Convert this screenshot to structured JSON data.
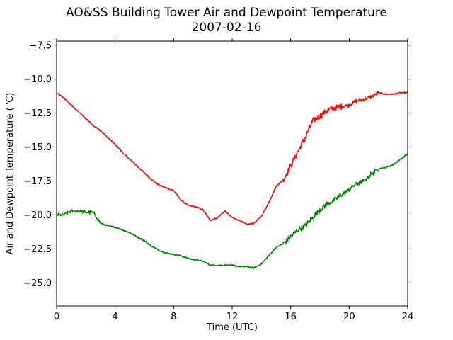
{
  "chart_data": {
    "type": "line",
    "title": "AO&SS Building Tower Air and Dewpoint Temperature",
    "subtitle": "2007-02-16",
    "xlabel": "Time (UTC)",
    "ylabel": "Air and Dewpoint Temperature (°C)",
    "xlim": [
      0,
      24
    ],
    "ylim": [
      -26.7,
      -7.2
    ],
    "xticks": [
      0,
      4,
      8,
      12,
      16,
      20,
      24
    ],
    "xtick_labels": [
      "0",
      "4",
      "8",
      "12",
      "16",
      "20",
      "24"
    ],
    "yticks": [
      -25.0,
      -22.5,
      -20.0,
      -17.5,
      -15.0,
      -12.5,
      -10.0,
      -7.5
    ],
    "ytick_labels": [
      "−25.0",
      "−22.5",
      "−20.0",
      "−17.5",
      "−15.0",
      "−12.5",
      "−10.0",
      "−7.5"
    ],
    "grid": false,
    "series": [
      {
        "color": "#ff0000",
        "x": [
          0,
          0.5,
          1,
          1.5,
          2,
          2.5,
          3,
          3.5,
          4,
          4.5,
          5,
          5.5,
          6,
          6.5,
          7,
          7.5,
          8,
          8.5,
          9,
          9.5,
          10,
          10.5,
          11,
          11.5,
          12,
          12.5,
          13,
          13.5,
          14,
          14.5,
          15,
          15.5,
          16,
          16.5,
          17,
          17.5,
          18,
          18.5,
          19,
          19.5,
          20,
          20.5,
          21,
          21.5,
          22,
          22.5,
          23,
          23.5,
          24
        ],
        "y": [
          -11.0,
          -11.4,
          -11.9,
          -12.4,
          -12.9,
          -13.4,
          -13.8,
          -14.3,
          -14.8,
          -15.4,
          -15.9,
          -16.4,
          -16.9,
          -17.4,
          -17.8,
          -18.0,
          -18.2,
          -18.9,
          -19.3,
          -19.4,
          -19.6,
          -20.4,
          -20.2,
          -19.7,
          -20.2,
          -20.4,
          -20.7,
          -20.6,
          -20.1,
          -19.1,
          -17.9,
          -17.4,
          -16.4,
          -15.3,
          -14.3,
          -13.1,
          -12.7,
          -12.3,
          -12.1,
          -12.0,
          -11.9,
          -11.6,
          -11.5,
          -11.3,
          -11.0,
          -11.1,
          -11.1,
          -11.0,
          -11.0
        ]
      },
      {
        "color": "#008000",
        "x": [
          0,
          0.5,
          1,
          1.5,
          2,
          2.5,
          3,
          3.5,
          4,
          4.5,
          5,
          5.5,
          6,
          6.5,
          7,
          7.5,
          8,
          8.5,
          9,
          9.5,
          10,
          10.5,
          11,
          11.5,
          12,
          12.5,
          13,
          13.5,
          14,
          14.5,
          15,
          15.5,
          16,
          16.5,
          17,
          17.5,
          18,
          18.5,
          19,
          19.5,
          20,
          20.5,
          21,
          21.5,
          22,
          22.5,
          23,
          23.5,
          24
        ],
        "y": [
          -20.0,
          -20.0,
          -19.7,
          -19.7,
          -19.8,
          -19.8,
          -20.6,
          -20.8,
          -20.9,
          -21.1,
          -21.3,
          -21.6,
          -21.9,
          -22.3,
          -22.6,
          -22.8,
          -22.9,
          -23.0,
          -23.2,
          -23.3,
          -23.4,
          -23.7,
          -23.7,
          -23.7,
          -23.7,
          -23.8,
          -23.8,
          -23.9,
          -23.6,
          -23.0,
          -22.4,
          -22.1,
          -21.6,
          -21.1,
          -20.8,
          -20.2,
          -19.6,
          -19.2,
          -18.9,
          -18.5,
          -18.1,
          -17.7,
          -17.5,
          -17.0,
          -16.6,
          -16.5,
          -16.3,
          -15.9,
          -15.5
        ]
      }
    ]
  }
}
